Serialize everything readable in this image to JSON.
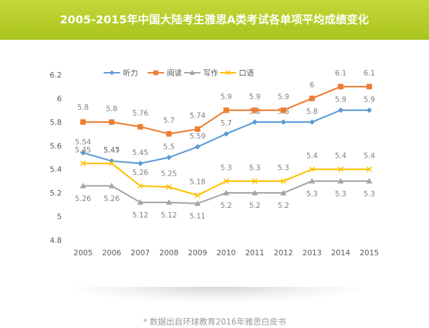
{
  "header": {
    "title": "2005-2015年中国大陆考生雅思A类考试各单项平均成绩变化"
  },
  "footer": {
    "source_note": "* 数据出自环球教育2016年雅思白皮书"
  },
  "chart_data": {
    "type": "line",
    "title": "2005-2015年中国大陆考生雅思A类考试各单项平均成绩变化",
    "xlabel": "",
    "ylabel": "",
    "categories": [
      "2005",
      "2006",
      "2007",
      "2008",
      "2009",
      "2010",
      "2011",
      "2012",
      "2013",
      "2014",
      "2015"
    ],
    "ylim": [
      4.8,
      6.2
    ],
    "yticks": [
      "4.8",
      "5",
      "5.2",
      "5.4",
      "5.6",
      "5.8",
      "6",
      "6.2"
    ],
    "grid": false,
    "legend_position": "top-left",
    "series": [
      {
        "name": "听力",
        "color": "#5b9bd5",
        "marker": "diamond",
        "values": [
          5.54,
          5.47,
          5.45,
          5.5,
          5.59,
          5.7,
          5.8,
          5.8,
          5.8,
          5.9,
          5.9
        ],
        "labels": [
          "5.54",
          "5.47",
          "5.45",
          "5.5",
          "5.59",
          "5.7",
          "5.8",
          "5.8",
          "5.8",
          "5.9",
          "5.9"
        ]
      },
      {
        "name": "阅读",
        "color": "#ed7d31",
        "marker": "square",
        "values": [
          5.8,
          5.8,
          5.76,
          5.7,
          5.74,
          5.9,
          5.9,
          5.9,
          6,
          6.1,
          6.1
        ],
        "labels": [
          "5.8",
          "5.8",
          "5.76",
          "5.7",
          "5.74",
          "5.9",
          "5.9",
          "5.9",
          "6",
          "6.1",
          "6.1"
        ]
      },
      {
        "name": "写作",
        "color": "#a5a5a5",
        "marker": "triangle",
        "values": [
          5.26,
          5.26,
          5.12,
          5.12,
          5.11,
          5.2,
          5.2,
          5.2,
          5.3,
          5.3,
          5.3
        ],
        "labels": [
          "5.26",
          "5.26",
          "5.12",
          "5.12",
          "5.11",
          "5.2",
          "5.2",
          "5.2",
          "5.3",
          "5.3",
          "5.3"
        ]
      },
      {
        "name": "口语",
        "color": "#ffc000",
        "marker": "x",
        "values": [
          5.45,
          5.45,
          5.26,
          5.25,
          5.18,
          5.3,
          5.3,
          5.3,
          5.4,
          5.4,
          5.4
        ],
        "labels": [
          "5.45",
          "5.45",
          "5.26",
          "5.25",
          "5.18",
          "5.3",
          "5.3",
          "5.3",
          "5.4",
          "5.4",
          "5.4"
        ]
      }
    ]
  }
}
